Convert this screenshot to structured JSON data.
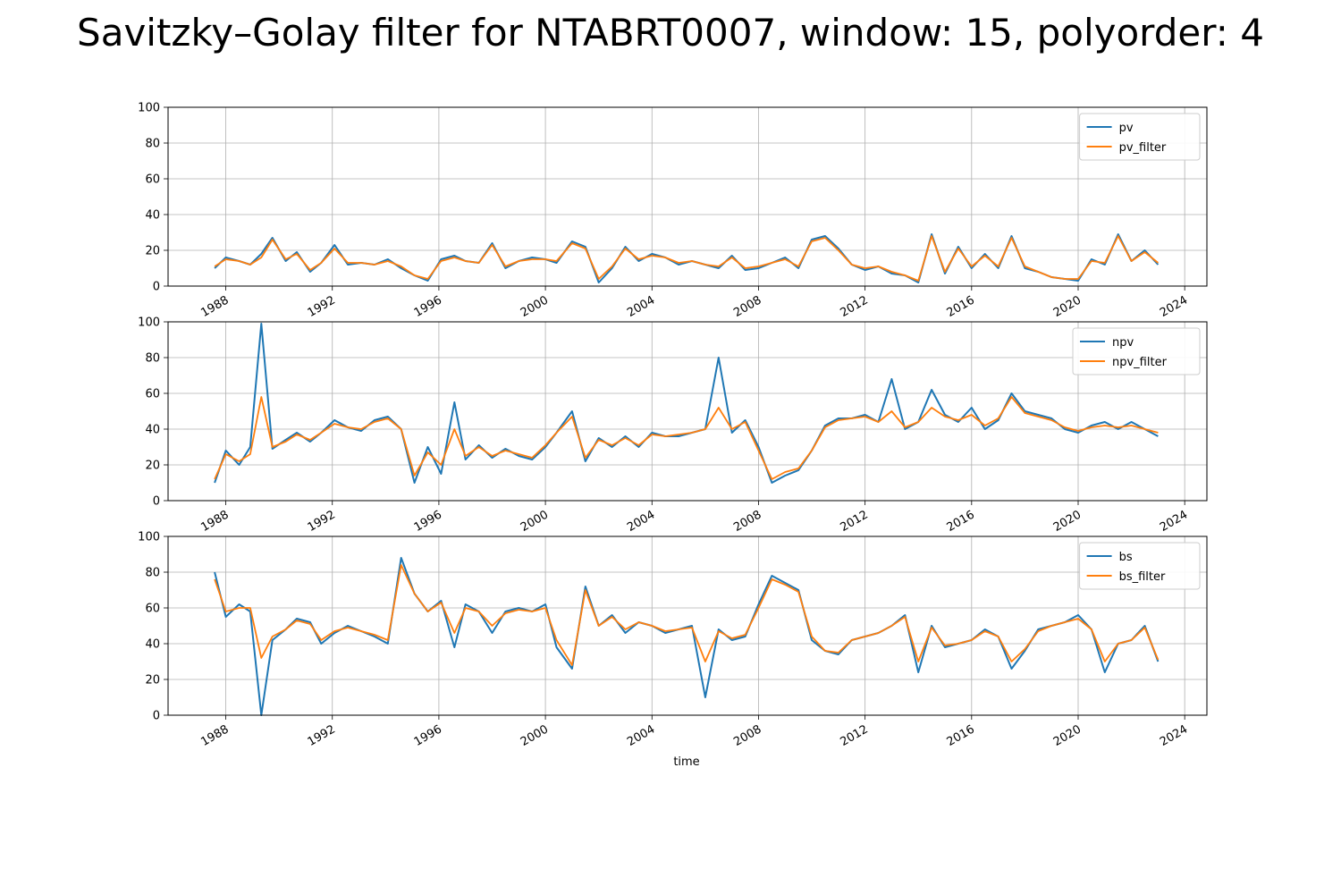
{
  "title": "Savitzky–Golay filter for NTABRT0007, window: 15, polyorder: 4",
  "colors": {
    "raw": "#1f77b4",
    "filter": "#ff7f0e",
    "grid": "#b0b0b0"
  },
  "chart_data": [
    {
      "type": "line",
      "xlabel": "",
      "ylabel": "",
      "ylim": [
        0,
        100
      ],
      "xlim": [
        "1985-11-01",
        "2024-11-01"
      ],
      "yticks": [
        "0",
        "20",
        "40",
        "60",
        "80",
        "100"
      ],
      "xticks": [
        "1988",
        "1992",
        "1996",
        "2000",
        "2004",
        "2008",
        "2012",
        "2016",
        "2020",
        "2024"
      ],
      "grid": true,
      "legend": "top-right",
      "series": [
        {
          "name": "pv",
          "color": "#1f77b4",
          "x": [
            "1987-08",
            "1988-01",
            "1988-07",
            "1988-12",
            "1989-05",
            "1989-10",
            "1990-04",
            "1990-09",
            "1991-03",
            "1991-08",
            "1992-02",
            "1992-08",
            "1993-02",
            "1993-08",
            "1994-02",
            "1994-08",
            "1995-02",
            "1995-08",
            "1996-02",
            "1996-08",
            "1997-01",
            "1997-07",
            "1998-01",
            "1998-07",
            "1999-01",
            "1999-07",
            "2000-01",
            "2000-06",
            "2001-01",
            "2001-07",
            "2002-01",
            "2002-07",
            "2003-01",
            "2003-07",
            "2004-01",
            "2004-07",
            "2005-01",
            "2005-07",
            "2006-01",
            "2006-07",
            "2007-01",
            "2007-07",
            "2008-01",
            "2008-07",
            "2009-01",
            "2009-07",
            "2010-01",
            "2010-07",
            "2011-01",
            "2011-07",
            "2012-01",
            "2012-07",
            "2013-01",
            "2013-07",
            "2014-01",
            "2014-07",
            "2015-01",
            "2015-07",
            "2016-01",
            "2016-07",
            "2017-01",
            "2017-07",
            "2018-01",
            "2018-07",
            "2019-01",
            "2019-07",
            "2020-01",
            "2020-07",
            "2021-01",
            "2021-07",
            "2022-01",
            "2022-07",
            "2023-01"
          ],
          "values": [
            10,
            16,
            14,
            12,
            18,
            27,
            14,
            19,
            8,
            13,
            23,
            12,
            13,
            12,
            15,
            10,
            6,
            3,
            15,
            17,
            14,
            13,
            24,
            10,
            14,
            16,
            15,
            13,
            25,
            22,
            2,
            10,
            22,
            14,
            18,
            16,
            12,
            14,
            12,
            10,
            17,
            9,
            10,
            13,
            16,
            10,
            26,
            28,
            21,
            12,
            9,
            11,
            7,
            6,
            2,
            29,
            7,
            22,
            10,
            18,
            10,
            28,
            10,
            8,
            5,
            4,
            3,
            15,
            12,
            29,
            14,
            20,
            12
          ]
        },
        {
          "name": "pv_filter",
          "color": "#ff7f0e",
          "x": [
            "1987-08",
            "1988-01",
            "1988-07",
            "1988-12",
            "1989-05",
            "1989-10",
            "1990-04",
            "1990-09",
            "1991-03",
            "1991-08",
            "1992-02",
            "1992-08",
            "1993-02",
            "1993-08",
            "1994-02",
            "1994-08",
            "1995-02",
            "1995-08",
            "1996-02",
            "1996-08",
            "1997-01",
            "1997-07",
            "1998-01",
            "1998-07",
            "1999-01",
            "1999-07",
            "2000-01",
            "2000-06",
            "2001-01",
            "2001-07",
            "2002-01",
            "2002-07",
            "2003-01",
            "2003-07",
            "2004-01",
            "2004-07",
            "2005-01",
            "2005-07",
            "2006-01",
            "2006-07",
            "2007-01",
            "2007-07",
            "2008-01",
            "2008-07",
            "2009-01",
            "2009-07",
            "2010-01",
            "2010-07",
            "2011-01",
            "2011-07",
            "2012-01",
            "2012-07",
            "2013-01",
            "2013-07",
            "2014-01",
            "2014-07",
            "2015-01",
            "2015-07",
            "2016-01",
            "2016-07",
            "2017-01",
            "2017-07",
            "2018-01",
            "2018-07",
            "2019-01",
            "2019-07",
            "2020-01",
            "2020-07",
            "2021-01",
            "2021-07",
            "2022-01",
            "2022-07",
            "2023-01"
          ],
          "values": [
            11,
            15,
            14,
            12,
            16,
            26,
            15,
            18,
            9,
            13,
            21,
            13,
            13,
            12,
            14,
            11,
            6,
            4,
            14,
            16,
            14,
            13,
            23,
            11,
            14,
            15,
            15,
            14,
            24,
            21,
            4,
            11,
            21,
            15,
            17,
            16,
            13,
            14,
            12,
            11,
            16,
            10,
            11,
            13,
            15,
            11,
            25,
            27,
            20,
            12,
            10,
            11,
            8,
            6,
            3,
            28,
            8,
            21,
            11,
            17,
            11,
            27,
            11,
            8,
            5,
            4,
            4,
            14,
            13,
            28,
            14,
            19,
            13
          ]
        }
      ]
    },
    {
      "type": "line",
      "xlabel": "",
      "ylabel": "",
      "ylim": [
        0,
        100
      ],
      "xlim": [
        "1985-11-01",
        "2024-11-01"
      ],
      "yticks": [
        "0",
        "20",
        "40",
        "60",
        "80",
        "100"
      ],
      "xticks": [
        "1988",
        "1992",
        "1996",
        "2000",
        "2004",
        "2008",
        "2012",
        "2016",
        "2020",
        "2024"
      ],
      "grid": true,
      "legend": "top-right",
      "series": [
        {
          "name": "npv",
          "color": "#1f77b4",
          "x": [
            "1987-08",
            "1988-01",
            "1988-07",
            "1988-12",
            "1989-05",
            "1989-10",
            "1990-04",
            "1990-09",
            "1991-03",
            "1991-08",
            "1992-02",
            "1992-08",
            "1993-02",
            "1993-08",
            "1994-02",
            "1994-08",
            "1995-02",
            "1995-08",
            "1996-02",
            "1996-08",
            "1997-01",
            "1997-07",
            "1998-01",
            "1998-07",
            "1999-01",
            "1999-07",
            "2000-01",
            "2000-06",
            "2001-01",
            "2001-07",
            "2002-01",
            "2002-07",
            "2003-01",
            "2003-07",
            "2004-01",
            "2004-07",
            "2005-01",
            "2005-07",
            "2006-01",
            "2006-07",
            "2007-01",
            "2007-07",
            "2008-01",
            "2008-07",
            "2009-01",
            "2009-07",
            "2010-01",
            "2010-07",
            "2011-01",
            "2011-07",
            "2012-01",
            "2012-07",
            "2013-01",
            "2013-07",
            "2014-01",
            "2014-07",
            "2015-01",
            "2015-07",
            "2016-01",
            "2016-07",
            "2017-01",
            "2017-07",
            "2018-01",
            "2018-07",
            "2019-01",
            "2019-07",
            "2020-01",
            "2020-07",
            "2021-01",
            "2021-07",
            "2022-01",
            "2022-07",
            "2023-01"
          ],
          "values": [
            10,
            28,
            20,
            30,
            99,
            29,
            34,
            38,
            33,
            38,
            45,
            41,
            39,
            45,
            47,
            40,
            10,
            30,
            15,
            55,
            23,
            31,
            24,
            29,
            25,
            23,
            30,
            38,
            50,
            22,
            35,
            30,
            36,
            30,
            38,
            36,
            36,
            38,
            40,
            80,
            38,
            45,
            30,
            10,
            14,
            17,
            28,
            42,
            46,
            46,
            48,
            44,
            68,
            40,
            44,
            62,
            48,
            44,
            52,
            40,
            45,
            60,
            50,
            48,
            46,
            40,
            38,
            42,
            44,
            40,
            44,
            40,
            36
          ]
        },
        {
          "name": "npv_filter",
          "color": "#ff7f0e",
          "x": [
            "1987-08",
            "1988-01",
            "1988-07",
            "1988-12",
            "1989-05",
            "1989-10",
            "1990-04",
            "1990-09",
            "1991-03",
            "1991-08",
            "1992-02",
            "1992-08",
            "1993-02",
            "1993-08",
            "1994-02",
            "1994-08",
            "1995-02",
            "1995-08",
            "1996-02",
            "1996-08",
            "1997-01",
            "1997-07",
            "1998-01",
            "1998-07",
            "1999-01",
            "1999-07",
            "2000-01",
            "2000-06",
            "2001-01",
            "2001-07",
            "2002-01",
            "2002-07",
            "2003-01",
            "2003-07",
            "2004-01",
            "2004-07",
            "2005-01",
            "2005-07",
            "2006-01",
            "2006-07",
            "2007-01",
            "2007-07",
            "2008-01",
            "2008-07",
            "2009-01",
            "2009-07",
            "2010-01",
            "2010-07",
            "2011-01",
            "2011-07",
            "2012-01",
            "2012-07",
            "2013-01",
            "2013-07",
            "2014-01",
            "2014-07",
            "2015-01",
            "2015-07",
            "2016-01",
            "2016-07",
            "2017-01",
            "2017-07",
            "2018-01",
            "2018-07",
            "2019-01",
            "2019-07",
            "2020-01",
            "2020-07",
            "2021-01",
            "2021-07",
            "2022-01",
            "2022-07",
            "2023-01"
          ],
          "values": [
            12,
            26,
            22,
            26,
            58,
            30,
            33,
            37,
            34,
            38,
            43,
            41,
            40,
            44,
            46,
            40,
            14,
            27,
            20,
            40,
            25,
            30,
            25,
            28,
            26,
            24,
            31,
            38,
            47,
            24,
            34,
            31,
            35,
            31,
            37,
            36,
            37,
            38,
            40,
            52,
            40,
            44,
            28,
            12,
            16,
            18,
            28,
            41,
            45,
            46,
            47,
            44,
            50,
            41,
            44,
            52,
            47,
            45,
            48,
            42,
            46,
            58,
            49,
            47,
            45,
            41,
            39,
            41,
            42,
            41,
            42,
            40,
            38
          ]
        }
      ]
    },
    {
      "type": "line",
      "xlabel": "time",
      "ylabel": "",
      "ylim": [
        0,
        100
      ],
      "xlim": [
        "1985-11-01",
        "2024-11-01"
      ],
      "yticks": [
        "0",
        "20",
        "40",
        "60",
        "80",
        "100"
      ],
      "xticks": [
        "1988",
        "1992",
        "1996",
        "2000",
        "2004",
        "2008",
        "2012",
        "2016",
        "2020",
        "2024"
      ],
      "grid": true,
      "legend": "top-right",
      "series": [
        {
          "name": "bs",
          "color": "#1f77b4",
          "x": [
            "1987-08",
            "1988-01",
            "1988-07",
            "1988-12",
            "1989-05",
            "1989-10",
            "1990-04",
            "1990-09",
            "1991-03",
            "1991-08",
            "1992-02",
            "1992-08",
            "1993-02",
            "1993-08",
            "1994-02",
            "1994-08",
            "1995-02",
            "1995-08",
            "1996-02",
            "1996-08",
            "1997-01",
            "1997-07",
            "1998-01",
            "1998-07",
            "1999-01",
            "1999-07",
            "2000-01",
            "2000-06",
            "2001-01",
            "2001-07",
            "2002-01",
            "2002-07",
            "2003-01",
            "2003-07",
            "2004-01",
            "2004-07",
            "2005-01",
            "2005-07",
            "2006-01",
            "2006-07",
            "2007-01",
            "2007-07",
            "2008-01",
            "2008-07",
            "2009-01",
            "2009-07",
            "2010-01",
            "2010-07",
            "2011-01",
            "2011-07",
            "2012-01",
            "2012-07",
            "2013-01",
            "2013-07",
            "2014-01",
            "2014-07",
            "2015-01",
            "2015-07",
            "2016-01",
            "2016-07",
            "2017-01",
            "2017-07",
            "2018-01",
            "2018-07",
            "2019-01",
            "2019-07",
            "2020-01",
            "2020-07",
            "2021-01",
            "2021-07",
            "2022-01",
            "2022-07",
            "2023-01"
          ],
          "values": [
            80,
            55,
            62,
            58,
            0,
            42,
            48,
            54,
            52,
            40,
            46,
            50,
            47,
            44,
            40,
            88,
            68,
            58,
            64,
            38,
            62,
            58,
            46,
            58,
            60,
            58,
            62,
            38,
            26,
            72,
            50,
            56,
            46,
            52,
            50,
            46,
            48,
            50,
            10,
            48,
            42,
            44,
            62,
            78,
            74,
            70,
            42,
            36,
            34,
            42,
            44,
            46,
            50,
            56,
            24,
            50,
            38,
            40,
            42,
            48,
            44,
            26,
            36,
            48,
            50,
            52,
            56,
            48,
            24,
            40,
            42,
            50,
            30
          ]
        },
        {
          "name": "bs_filter",
          "color": "#ff7f0e",
          "x": [
            "1987-08",
            "1988-01",
            "1988-07",
            "1988-12",
            "1989-05",
            "1989-10",
            "1990-04",
            "1990-09",
            "1991-03",
            "1991-08",
            "1992-02",
            "1992-08",
            "1993-02",
            "1993-08",
            "1994-02",
            "1994-08",
            "1995-02",
            "1995-08",
            "1996-02",
            "1996-08",
            "1997-01",
            "1997-07",
            "1998-01",
            "1998-07",
            "1999-01",
            "1999-07",
            "2000-01",
            "2000-06",
            "2001-01",
            "2001-07",
            "2002-01",
            "2002-07",
            "2003-01",
            "2003-07",
            "2004-01",
            "2004-07",
            "2005-01",
            "2005-07",
            "2006-01",
            "2006-07",
            "2007-01",
            "2007-07",
            "2008-01",
            "2008-07",
            "2009-01",
            "2009-07",
            "2010-01",
            "2010-07",
            "2011-01",
            "2011-07",
            "2012-01",
            "2012-07",
            "2013-01",
            "2013-07",
            "2014-01",
            "2014-07",
            "2015-01",
            "2015-07",
            "2016-01",
            "2016-07",
            "2017-01",
            "2017-07",
            "2018-01",
            "2018-07",
            "2019-01",
            "2019-07",
            "2020-01",
            "2020-07",
            "2021-01",
            "2021-07",
            "2022-01",
            "2022-07",
            "2023-01"
          ],
          "values": [
            76,
            58,
            60,
            60,
            32,
            44,
            48,
            53,
            51,
            42,
            47,
            49,
            47,
            45,
            42,
            84,
            68,
            58,
            63,
            46,
            60,
            58,
            50,
            57,
            59,
            58,
            60,
            42,
            28,
            70,
            50,
            55,
            48,
            52,
            50,
            47,
            48,
            49,
            30,
            47,
            43,
            45,
            60,
            76,
            73,
            69,
            44,
            36,
            35,
            42,
            44,
            46,
            50,
            55,
            30,
            49,
            39,
            40,
            42,
            47,
            44,
            30,
            37,
            47,
            50,
            52,
            54,
            48,
            30,
            40,
            42,
            49,
            31
          ]
        }
      ]
    }
  ]
}
